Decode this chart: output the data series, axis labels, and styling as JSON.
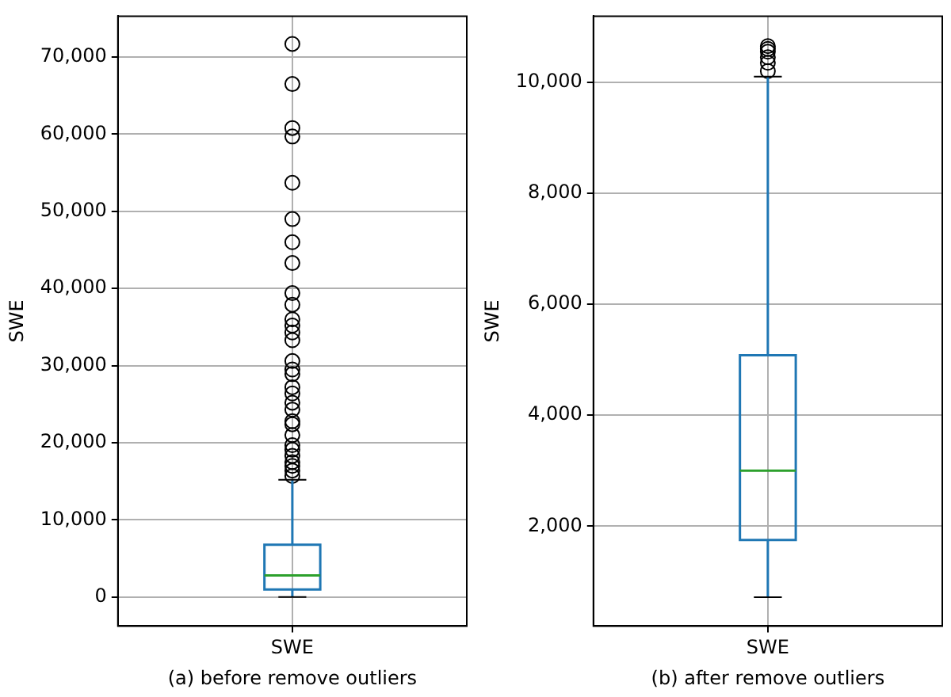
{
  "chart_data": [
    {
      "type": "box",
      "categories": [
        "SWE"
      ],
      "color": "#1f77b4",
      "ylabel": "SWE",
      "xlabel": "(a) before remove outliers",
      "grid": true,
      "marker": "circle",
      "ylim": [
        -3750,
        75300
      ],
      "yticks": [
        {
          "value": 0,
          "label": "0"
        },
        {
          "value": 10000,
          "label": "10,000"
        },
        {
          "value": 20000,
          "label": "20,000"
        },
        {
          "value": 30000,
          "label": "30,000"
        },
        {
          "value": 40000,
          "label": "40,000"
        },
        {
          "value": 50000,
          "label": "50,000"
        },
        {
          "value": 60000,
          "label": "60,000"
        },
        {
          "value": 70000,
          "label": "70,000"
        }
      ],
      "boxes": [
        {
          "low": 0,
          "q1": 1000,
          "median": 2800,
          "q3": 6800,
          "high": 15200,
          "outliers": [
            71700,
            66500,
            60800,
            59700,
            53700,
            49000,
            46000,
            43300,
            39400,
            37900,
            36000,
            35200,
            34300,
            33300,
            30600,
            29500,
            28900,
            27200,
            26400,
            25200,
            24300,
            22800,
            22400,
            21000,
            19700,
            19100,
            18300,
            17500,
            17000,
            16400,
            15700
          ]
        }
      ]
    },
    {
      "type": "box",
      "categories": [
        "SWE"
      ],
      "color": "#1f77b4",
      "ylabel": "SWE",
      "xlabel": "(b) after remove outliers",
      "grid": true,
      "marker": "circle",
      "ylim": [
        200,
        11190
      ],
      "yticks": [
        {
          "value": 2000,
          "label": "2,000"
        },
        {
          "value": 4000,
          "label": "4,000"
        },
        {
          "value": 6000,
          "label": "6,000"
        },
        {
          "value": 8000,
          "label": "8,000"
        },
        {
          "value": 10000,
          "label": "10,000"
        }
      ],
      "boxes": [
        {
          "low": 720,
          "q1": 1750,
          "median": 3000,
          "q3": 5080,
          "high": 10100,
          "outliers": [
            10650,
            10600,
            10550,
            10450,
            10350,
            10200
          ]
        }
      ]
    }
  ]
}
